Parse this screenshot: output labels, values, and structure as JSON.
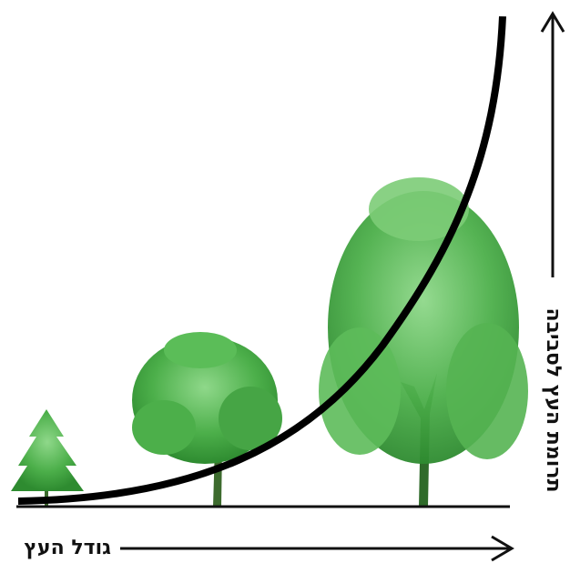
{
  "x_axis_label": "גודל העץ",
  "y_axis_label": "תרומת העץ לסביבה"
}
